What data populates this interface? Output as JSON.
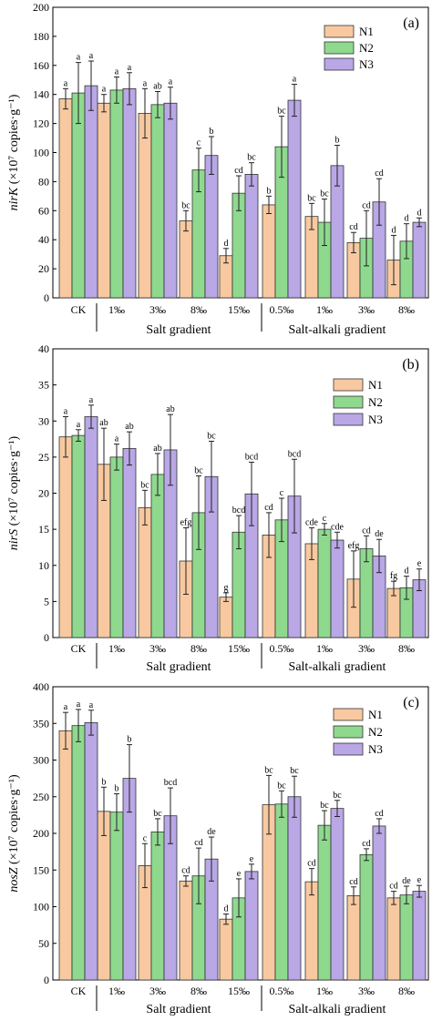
{
  "figure": {
    "group_labels": [
      "Salt gradient",
      "Salt-alkali gradient"
    ],
    "colors": {
      "N1": "#F8C9A0",
      "N2": "#8FD98F",
      "N3": "#B9A7E6",
      "edge": "#333333"
    }
  },
  "chart_data": [
    {
      "type": "bar",
      "panel_label": "(a)",
      "ylabel": "nirK (×10⁷ copies·g⁻¹)",
      "ylabel_italic": "nirK",
      "ylabel_rest": " (×10⁷ copies·g⁻¹)",
      "ylim": [
        0,
        200
      ],
      "yticks": [
        0,
        20,
        40,
        60,
        80,
        100,
        120,
        140,
        160,
        180,
        200
      ],
      "categories": [
        "CK",
        "1‰",
        "3‰",
        "8‰",
        "15‰",
        "0.5‰",
        "1‰",
        "3‰",
        "8‰"
      ],
      "series": [
        {
          "name": "N1",
          "values": [
            137,
            134,
            127,
            53,
            29,
            64,
            56,
            38,
            26
          ],
          "errors": [
            7,
            6,
            17,
            7,
            5,
            6,
            9,
            7,
            17
          ],
          "labels": [
            "a",
            "a",
            "a",
            "bc",
            "d",
            "b",
            "bc",
            "cd",
            "d"
          ]
        },
        {
          "name": "N2",
          "values": [
            141,
            143,
            133,
            88,
            72,
            104,
            52,
            41,
            39
          ],
          "errors": [
            21,
            9,
            9,
            15,
            12,
            21,
            16,
            19,
            12
          ],
          "labels": [
            "a",
            "a",
            "ab",
            "c",
            "cd",
            "bc",
            "bc",
            "cd",
            "d"
          ]
        },
        {
          "name": "N3",
          "values": [
            146,
            144,
            134,
            98,
            85,
            136,
            91,
            66,
            52
          ],
          "errors": [
            17,
            11,
            11,
            13,
            8,
            11,
            14,
            16,
            3
          ],
          "labels": [
            "a",
            "a",
            "a",
            "b",
            "bc",
            "a",
            "b",
            "cd",
            "d"
          ]
        }
      ]
    },
    {
      "type": "bar",
      "panel_label": "(b)",
      "ylabel": "nirS (×10⁷ copies·g⁻¹)",
      "ylabel_italic": "nirS",
      "ylabel_rest": " (×10⁷ copies·g⁻¹)",
      "ylim": [
        0,
        40
      ],
      "yticks": [
        0,
        5,
        10,
        15,
        20,
        25,
        30,
        35,
        40
      ],
      "categories": [
        "CK",
        "1‰",
        "3‰",
        "8‰",
        "15‰",
        "0.5‰",
        "1‰",
        "3‰",
        "8‰"
      ],
      "series": [
        {
          "name": "N1",
          "values": [
            27.8,
            24.0,
            18.0,
            10.6,
            5.6,
            14.2,
            13.0,
            8.1,
            6.8
          ],
          "errors": [
            2.8,
            5.0,
            2.4,
            4.6,
            0.6,
            3.1,
            2.2,
            3.9,
            1.0
          ],
          "labels": [
            "a",
            "ab",
            "bc",
            "efg",
            "g",
            "cd",
            "cde",
            "efg",
            "fg"
          ]
        },
        {
          "name": "N2",
          "values": [
            28.0,
            25.0,
            22.6,
            17.3,
            14.6,
            16.3,
            15.0,
            12.3,
            6.9
          ],
          "errors": [
            0.8,
            1.8,
            2.9,
            5.1,
            2.3,
            3.0,
            0.8,
            1.8,
            1.6
          ],
          "labels": [
            "a",
            "a",
            "ab",
            "bc",
            "bcd",
            "c",
            "c",
            "cd",
            "d"
          ]
        },
        {
          "name": "N3",
          "values": [
            30.6,
            26.2,
            26.0,
            22.3,
            19.9,
            19.6,
            13.5,
            11.3,
            8.0
          ],
          "errors": [
            1.6,
            2.3,
            4.9,
            4.9,
            4.4,
            5.1,
            1.1,
            2.3,
            1.5
          ],
          "labels": [
            "a",
            "ab",
            "ab",
            "bc",
            "bcd",
            "bcd",
            "cde",
            "de",
            "e"
          ]
        }
      ]
    },
    {
      "type": "bar",
      "panel_label": "(c)",
      "ylabel": "nosZ (×10⁷ copies·g⁻¹)",
      "ylabel_italic": "nosZ",
      "ylabel_rest": " (×10⁷ copies·g⁻¹)",
      "ylim": [
        0,
        400
      ],
      "yticks": [
        0,
        50,
        100,
        150,
        200,
        250,
        300,
        350,
        400
      ],
      "categories": [
        "CK",
        "1‰",
        "3‰",
        "8‰",
        "15‰",
        "0.5‰",
        "1‰",
        "3‰",
        "8‰"
      ],
      "series": [
        {
          "name": "N1",
          "values": [
            340,
            230,
            156,
            135,
            83,
            239,
            134,
            115,
            112
          ],
          "errors": [
            25,
            33,
            30,
            7,
            7,
            40,
            18,
            12,
            9
          ],
          "labels": [
            "a",
            "b",
            "c",
            "cd",
            "d",
            "bc",
            "cd",
            "cd",
            "cd"
          ]
        },
        {
          "name": "N2",
          "values": [
            347,
            229,
            202,
            142,
            112,
            240,
            211,
            171,
            116
          ],
          "errors": [
            22,
            25,
            18,
            38,
            26,
            18,
            20,
            8,
            12
          ],
          "labels": [
            "a",
            "b",
            "bc",
            "cd",
            "e",
            "bc",
            "bc",
            "cd",
            "de"
          ]
        },
        {
          "name": "N3",
          "values": [
            351,
            275,
            224,
            165,
            148,
            250,
            234,
            210,
            121
          ],
          "errors": [
            17,
            46,
            38,
            30,
            10,
            28,
            11,
            10,
            8
          ],
          "labels": [
            "a",
            "b",
            "bcd",
            "de",
            "e",
            "bc",
            "bc",
            "cd",
            "e"
          ]
        }
      ]
    }
  ]
}
